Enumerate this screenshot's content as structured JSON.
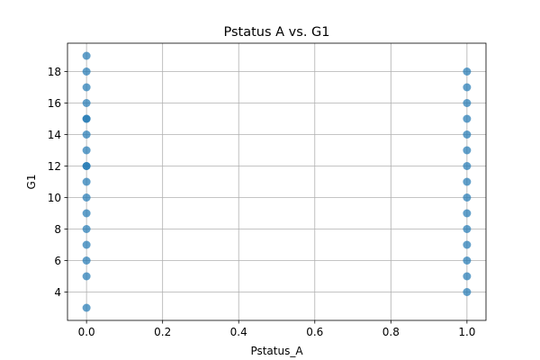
{
  "chart_data": {
    "type": "scatter",
    "title": "Pstatus A vs. G1",
    "xlabel": "Pstatus_A",
    "ylabel": "G1",
    "xlim": [
      -0.05,
      1.05
    ],
    "ylim": [
      2.2,
      19.8
    ],
    "xticks": [
      0.0,
      0.2,
      0.4,
      0.6,
      0.8,
      1.0
    ],
    "xtick_labels": [
      "0.0",
      "0.2",
      "0.4",
      "0.6",
      "0.8",
      "1.0"
    ],
    "yticks": [
      4,
      6,
      8,
      10,
      12,
      14,
      16,
      18
    ],
    "ytick_labels": [
      "4",
      "6",
      "8",
      "10",
      "12",
      "14",
      "16",
      "18"
    ],
    "grid": true,
    "point_color": "#1f77b4",
    "point_alpha": 0.7,
    "series": [
      {
        "x": [
          0,
          0,
          0,
          0,
          0,
          0,
          0,
          0,
          0,
          0,
          0,
          0,
          0,
          0,
          0,
          0,
          0,
          0,
          1,
          1,
          1,
          1,
          1,
          1,
          1,
          1,
          1,
          1,
          1,
          1,
          1,
          1,
          1
        ],
        "y": [
          3,
          5,
          6,
          7,
          8,
          9,
          10,
          11,
          12,
          13,
          14,
          15,
          16,
          17,
          18,
          19,
          15,
          12,
          4,
          5,
          6,
          7,
          8,
          9,
          10,
          11,
          12,
          13,
          14,
          15,
          16,
          17,
          18
        ]
      }
    ]
  }
}
